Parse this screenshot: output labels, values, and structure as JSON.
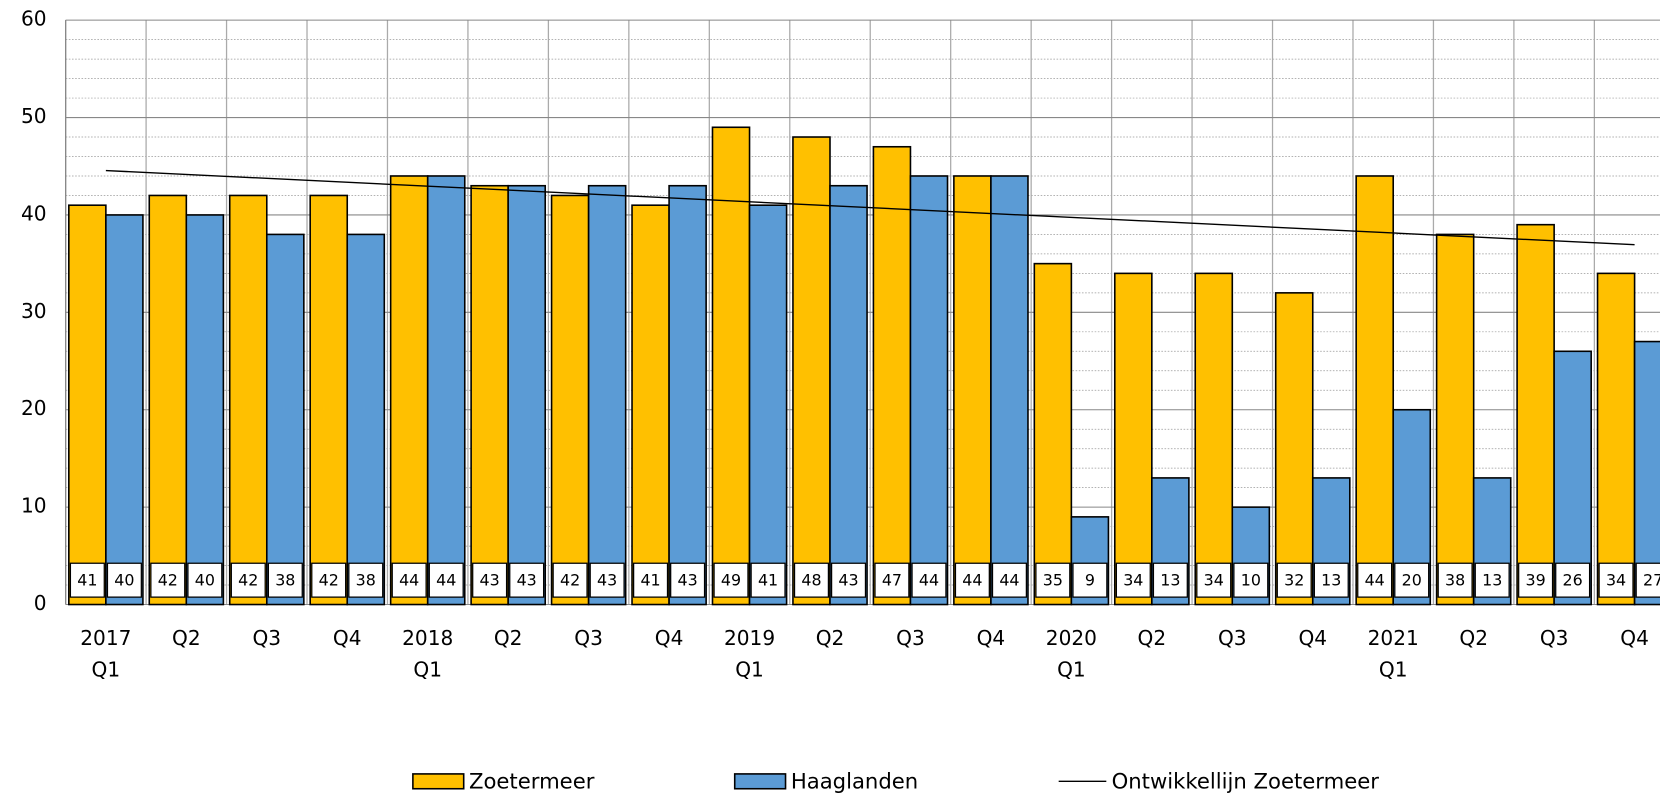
{
  "chart_data": {
    "type": "bar",
    "categories": [
      [
        "2017",
        "Q1"
      ],
      [
        "Q2"
      ],
      [
        "Q3"
      ],
      [
        "Q4"
      ],
      [
        "2018",
        "Q1"
      ],
      [
        "Q2"
      ],
      [
        "Q3"
      ],
      [
        "Q4"
      ],
      [
        "2019",
        "Q1"
      ],
      [
        "Q2"
      ],
      [
        "Q3"
      ],
      [
        "Q4"
      ],
      [
        "2020",
        "Q1"
      ],
      [
        "Q2"
      ],
      [
        "Q3"
      ],
      [
        "Q4"
      ],
      [
        "2021",
        "Q1"
      ],
      [
        "Q2"
      ],
      [
        "Q3"
      ],
      [
        "Q4"
      ]
    ],
    "series": [
      {
        "name": "Zoetermeer",
        "color": "#ffc000",
        "values": [
          41,
          42,
          42,
          42,
          44,
          43,
          42,
          41,
          49,
          48,
          47,
          44,
          35,
          34,
          34,
          32,
          44,
          38,
          39,
          34
        ]
      },
      {
        "name": "Haaglanden",
        "color": "#5b9bd5",
        "values": [
          40,
          40,
          38,
          38,
          44,
          43,
          43,
          43,
          41,
          43,
          44,
          44,
          9,
          13,
          10,
          13,
          20,
          13,
          26,
          27
        ]
      }
    ],
    "trendline": {
      "name": "Ontwikkellijn Zoetermeer",
      "color": "#000000",
      "series": 0
    },
    "ylim": [
      0,
      60
    ],
    "yticks": [
      0,
      10,
      20,
      30,
      40,
      50,
      60
    ],
    "minor_yticks": [
      2,
      4,
      6,
      8,
      12,
      14,
      16,
      18,
      22,
      24,
      26,
      28,
      32,
      34,
      36,
      38,
      42,
      44,
      46,
      48,
      52,
      54,
      56,
      58
    ],
    "grid": true
  }
}
